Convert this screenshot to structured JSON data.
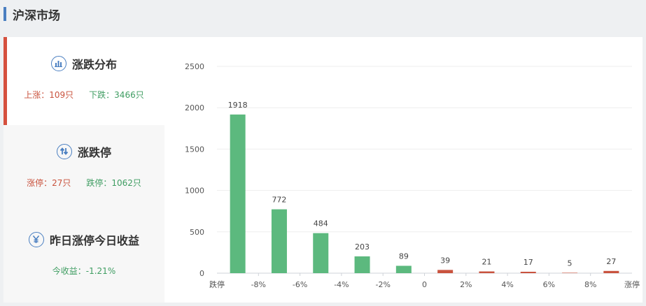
{
  "header": {
    "title": "沪深市场"
  },
  "tabs": [
    {
      "title": "涨跌分布",
      "icon": "bar-chart-icon",
      "stats": [
        {
          "text": "上涨：109只",
          "tone": "red"
        },
        {
          "text": "下跌：3466只",
          "tone": "green"
        }
      ]
    },
    {
      "title": "涨跌停",
      "icon": "up-down-arrows-icon",
      "stats": [
        {
          "text": "涨停：27只",
          "tone": "red"
        },
        {
          "text": "跌停：1062只",
          "tone": "green"
        }
      ]
    },
    {
      "title": "昨日涨停今日收益",
      "icon": "yen-icon",
      "stats": [
        {
          "text": "今收益：-1.21%",
          "tone": "green"
        }
      ]
    }
  ],
  "colors": {
    "up": "#c9533e",
    "down": "#5cb97e",
    "accent": "#4a7fc1"
  },
  "chart_data": {
    "type": "bar",
    "categories": [
      "跌停",
      "-8%",
      "-6%",
      "-4%",
      "-2%",
      "0",
      "2%",
      "4%",
      "6%",
      "8%",
      "涨停"
    ],
    "bars": [
      {
        "value": 1918,
        "dir": "down"
      },
      {
        "value": 772,
        "dir": "down"
      },
      {
        "value": 484,
        "dir": "down"
      },
      {
        "value": 203,
        "dir": "down"
      },
      {
        "value": 89,
        "dir": "down"
      },
      {
        "value": 39,
        "dir": "up"
      },
      {
        "value": 21,
        "dir": "up"
      },
      {
        "value": 17,
        "dir": "up"
      },
      {
        "value": 5,
        "dir": "up"
      },
      {
        "value": 27,
        "dir": "up"
      }
    ],
    "yticks": [
      0,
      500,
      1000,
      1500,
      2000,
      2500
    ],
    "ylim": [
      0,
      2500
    ],
    "grid": true
  }
}
